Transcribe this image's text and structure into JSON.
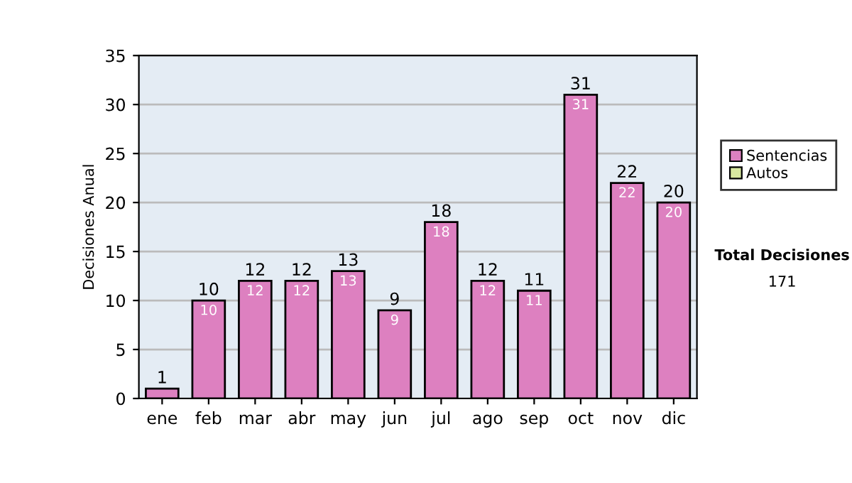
{
  "chart_data": {
    "type": "bar",
    "ylabel": "Decisiones Anual",
    "categories": [
      "ene",
      "feb",
      "mar",
      "abr",
      "may",
      "jun",
      "jul",
      "ago",
      "sep",
      "oct",
      "nov",
      "dic"
    ],
    "series": [
      {
        "name": "Sentencias",
        "color": "#dd80c0",
        "values": [
          1,
          10,
          12,
          12,
          13,
          9,
          18,
          12,
          11,
          31,
          22,
          20
        ],
        "value_labels": [
          null,
          "10",
          "12",
          "12",
          "13",
          "9",
          "18",
          "12",
          "11",
          "31",
          "22",
          "20"
        ]
      },
      {
        "name": "Autos",
        "color": "#d8e8a0",
        "values": [
          null,
          null,
          null,
          null,
          null,
          null,
          null,
          null,
          null,
          null,
          null,
          null
        ]
      }
    ],
    "stacked": true,
    "totals": [
      "1",
      "10",
      "12",
      "12",
      "13",
      "9",
      "18",
      "12",
      "11",
      "31",
      "22",
      "20"
    ],
    "ylim": [
      0,
      35
    ],
    "yticks": [
      0,
      5,
      10,
      15,
      20,
      25,
      30,
      35
    ],
    "grid": "y",
    "legend": "right",
    "annotations": [
      "Total Decisiones",
      "171"
    ]
  }
}
